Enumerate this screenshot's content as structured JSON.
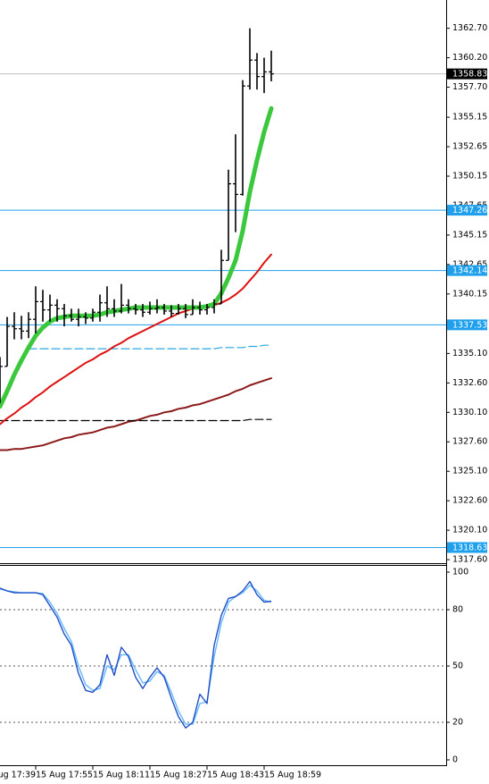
{
  "chart_data": [
    {
      "type": "ohlc",
      "categories": [
        "15 Aug 17:39",
        null,
        null,
        null,
        null,
        null,
        null,
        null,
        "15 Aug 17:55",
        null,
        null,
        null,
        null,
        null,
        null,
        null,
        "15 Aug 18:11",
        null,
        null,
        null,
        null,
        null,
        null,
        null,
        "15 Aug 18:27",
        null,
        null,
        null,
        null,
        null,
        null,
        null,
        "15 Aug 18:43",
        null,
        null,
        null,
        null,
        null,
        null,
        null,
        "15 Aug 18:59",
        null
      ],
      "open": [
        null,
        null,
        null,
        1331.0,
        1334.0,
        1337.4,
        1337.2,
        1337.0,
        1338.0,
        1339.5,
        1338.8,
        1339.2,
        1338.9,
        1338.3,
        1338.0,
        1338.2,
        1338.1,
        1338.6,
        1339.4,
        1338.9,
        1338.7,
        1339.2,
        1338.9,
        1338.8,
        1338.6,
        1338.9,
        1339.0,
        1338.7,
        1338.5,
        1338.9,
        1338.4,
        1339.0,
        1338.8,
        1339.0,
        1339.3,
        1343.0,
        1349.5,
        1348.6,
        1357.8,
        1360.0,
        1358.6,
        1359.0
      ],
      "high": [
        null,
        null,
        null,
        1334.8,
        1338.2,
        1338.6,
        1338.3,
        1338.6,
        1340.8,
        1340.5,
        1340.1,
        1339.7,
        1339.3,
        1338.9,
        1338.9,
        1338.6,
        1338.9,
        1340.1,
        1340.8,
        1339.7,
        1341.0,
        1339.7,
        1339.3,
        1339.3,
        1339.5,
        1339.7,
        1339.3,
        1339.2,
        1339.3,
        1339.3,
        1339.7,
        1339.5,
        1339.3,
        1339.7,
        1343.9,
        1350.7,
        1353.7,
        1358.3,
        1362.7,
        1360.6,
        1360.2,
        1360.8
      ],
      "low": [
        null,
        null,
        null,
        1330.9,
        1334.0,
        1336.3,
        1336.3,
        1336.4,
        1336.8,
        1337.8,
        1337.8,
        1337.8,
        1337.4,
        1337.8,
        1337.4,
        1337.6,
        1337.8,
        1337.8,
        1338.2,
        1338.2,
        1338.5,
        1338.5,
        1338.4,
        1338.2,
        1338.4,
        1338.5,
        1338.4,
        1338.2,
        1338.4,
        1338.1,
        1338.4,
        1338.4,
        1338.4,
        1338.5,
        1339.3,
        1343.0,
        1345.4,
        1348.5,
        1357.5,
        1357.5,
        1357.2,
        1358.2
      ],
      "close": [
        null,
        null,
        null,
        1334.0,
        1337.4,
        1337.2,
        1337.0,
        1338.0,
        1339.5,
        1338.8,
        1339.2,
        1338.9,
        1338.3,
        1338.0,
        1338.2,
        1338.1,
        1338.6,
        1339.4,
        1338.9,
        1338.7,
        1339.2,
        1338.9,
        1338.8,
        1338.6,
        1338.9,
        1339.0,
        1338.7,
        1338.5,
        1338.9,
        1338.4,
        1339.0,
        1338.8,
        1339.0,
        1339.3,
        1343.0,
        1349.5,
        1348.6,
        1357.8,
        1360.0,
        1358.6,
        1359.0,
        1358.83
      ],
      "color": "#000000",
      "series": [
        {
          "color": "#8b1a1a",
          "width": 2,
          "values": [
            null,
            null,
            null,
            1326.9,
            1326.9,
            1327.0,
            1327.0,
            1327.1,
            1327.2,
            1327.3,
            1327.5,
            1327.7,
            1327.9,
            1328.0,
            1328.2,
            1328.3,
            1328.4,
            1328.6,
            1328.8,
            1328.9,
            1329.1,
            1329.3,
            1329.4,
            1329.6,
            1329.8,
            1329.9,
            1330.1,
            1330.2,
            1330.4,
            1330.5,
            1330.7,
            1330.8,
            1331.0,
            1331.2,
            1331.4,
            1331.6,
            1331.9,
            1332.1,
            1332.4,
            1332.6,
            1332.8,
            1333.0
          ]
        },
        {
          "color": "#000000",
          "width": 1.2,
          "dash": true,
          "values": [
            null,
            null,
            null,
            1329.4,
            1329.4,
            1329.4,
            1329.4,
            1329.4,
            1329.4,
            1329.4,
            1329.4,
            1329.4,
            1329.4,
            1329.4,
            1329.4,
            1329.4,
            1329.4,
            1329.4,
            1329.4,
            1329.4,
            1329.4,
            1329.4,
            1329.4,
            1329.4,
            1329.4,
            1329.4,
            1329.4,
            1329.4,
            1329.4,
            1329.4,
            1329.4,
            1329.4,
            1329.4,
            1329.4,
            1329.4,
            1329.4,
            1329.4,
            1329.4,
            1329.5,
            1329.5,
            1329.5,
            1329.5
          ]
        },
        {
          "color": "#29a9e0",
          "width": 1.2,
          "dash": true,
          "values": [
            null,
            null,
            null,
            null,
            null,
            null,
            null,
            1335.5,
            1335.5,
            1335.5,
            1335.5,
            1335.5,
            1335.5,
            1335.5,
            1335.5,
            1335.5,
            1335.5,
            1335.5,
            1335.5,
            1335.5,
            1335.5,
            1335.5,
            1335.5,
            1335.5,
            1335.5,
            1335.5,
            1335.5,
            1335.5,
            1335.5,
            1335.5,
            1335.5,
            1335.5,
            1335.5,
            1335.5,
            1335.6,
            1335.6,
            1335.6,
            1335.6,
            1335.7,
            1335.7,
            1335.8,
            1335.8
          ]
        },
        {
          "color": "#dd1111",
          "width": 2,
          "values": [
            null,
            null,
            null,
            1329.1,
            1329.6,
            1330.0,
            1330.5,
            1330.9,
            1331.4,
            1331.8,
            1332.3,
            1332.7,
            1333.1,
            1333.5,
            1333.9,
            1334.3,
            1334.6,
            1335.0,
            1335.3,
            1335.7,
            1336.0,
            1336.4,
            1336.7,
            1337.0,
            1337.3,
            1337.6,
            1337.9,
            1338.2,
            1338.5,
            1338.7,
            1338.9,
            1339.0,
            1339.1,
            1339.2,
            1339.4,
            1339.7,
            1340.1,
            1340.6,
            1341.3,
            1342.0,
            1342.8,
            1343.5
          ]
        },
        {
          "color": "#3cc83c",
          "width": 5,
          "values": [
            null,
            null,
            null,
            1330.6,
            1331.9,
            1333.3,
            1334.5,
            1335.6,
            1336.6,
            1337.3,
            1337.8,
            1338.1,
            1338.2,
            1338.3,
            1338.3,
            1338.3,
            1338.3,
            1338.4,
            1338.6,
            1338.7,
            1338.8,
            1338.9,
            1339.0,
            1339.0,
            1339.0,
            1339.0,
            1339.0,
            1339.0,
            1339.0,
            1339.0,
            1339.0,
            1339.0,
            1339.1,
            1339.3,
            1340.2,
            1341.5,
            1343.0,
            1345.5,
            1348.8,
            1351.5,
            1353.9,
            1355.9
          ]
        }
      ],
      "ylim": [
        1317.3,
        1365.1
      ],
      "yticks": [
        {
          "value": 1317.6,
          "label": "1317.60"
        },
        {
          "value": 1320.1,
          "label": "1320.10"
        },
        {
          "value": 1322.6,
          "label": "1322.60"
        },
        {
          "value": 1325.1,
          "label": "1325.10"
        },
        {
          "value": 1327.6,
          "label": "1327.60"
        },
        {
          "value": 1330.1,
          "label": "1330.10"
        },
        {
          "value": 1332.6,
          "label": "1332.60"
        },
        {
          "value": 1335.1,
          "label": "1335.10"
        },
        {
          "value": 1337.65,
          "label": "1337.65"
        },
        {
          "value": 1340.15,
          "label": "1340.15"
        },
        {
          "value": 1342.65,
          "label": "1342.65"
        },
        {
          "value": 1345.15,
          "label": "1345.15"
        },
        {
          "value": 1347.65,
          "label": "1347.65"
        },
        {
          "value": 1350.15,
          "label": "1350.15"
        },
        {
          "value": 1352.65,
          "label": "1352.65"
        },
        {
          "value": 1355.15,
          "label": "1355.15"
        },
        {
          "value": 1357.7,
          "label": "1357.70"
        },
        {
          "value": 1360.2,
          "label": "1360.20"
        },
        {
          "value": 1362.7,
          "label": "1362.70"
        }
      ],
      "levels": [
        1347.26,
        1342.14,
        1337.53,
        1318.63
      ],
      "level_color": "#1ea0ec",
      "last_price": 1358.83
    },
    {
      "type": "line",
      "series": [
        {
          "color": "#63b8ff",
          "values": [
            null,
            null,
            null,
            91,
            90,
            89.5,
            89,
            89,
            89,
            88.5,
            84,
            78,
            70,
            63,
            50,
            40,
            37,
            38,
            50,
            48,
            56,
            56,
            48,
            41,
            42,
            47,
            45,
            36,
            26,
            19,
            19,
            30,
            31,
            55,
            73,
            84,
            87,
            89,
            93,
            90,
            85,
            84
          ]
        },
        {
          "color": "#1f4fc4",
          "values": [
            null,
            null,
            null,
            91.5,
            90,
            89,
            89,
            89,
            89,
            88,
            82,
            76,
            67,
            61,
            46,
            37,
            36,
            40,
            56,
            45,
            60,
            55,
            44,
            38,
            44,
            49,
            44,
            33,
            23,
            17,
            20,
            35,
            30,
            61,
            77,
            86,
            87,
            90,
            95,
            88,
            84,
            84.5
          ]
        }
      ],
      "ylim": [
        0,
        100
      ],
      "yticks": [
        0,
        20,
        50,
        80,
        100
      ],
      "levels": [
        20,
        50,
        80
      ]
    }
  ]
}
